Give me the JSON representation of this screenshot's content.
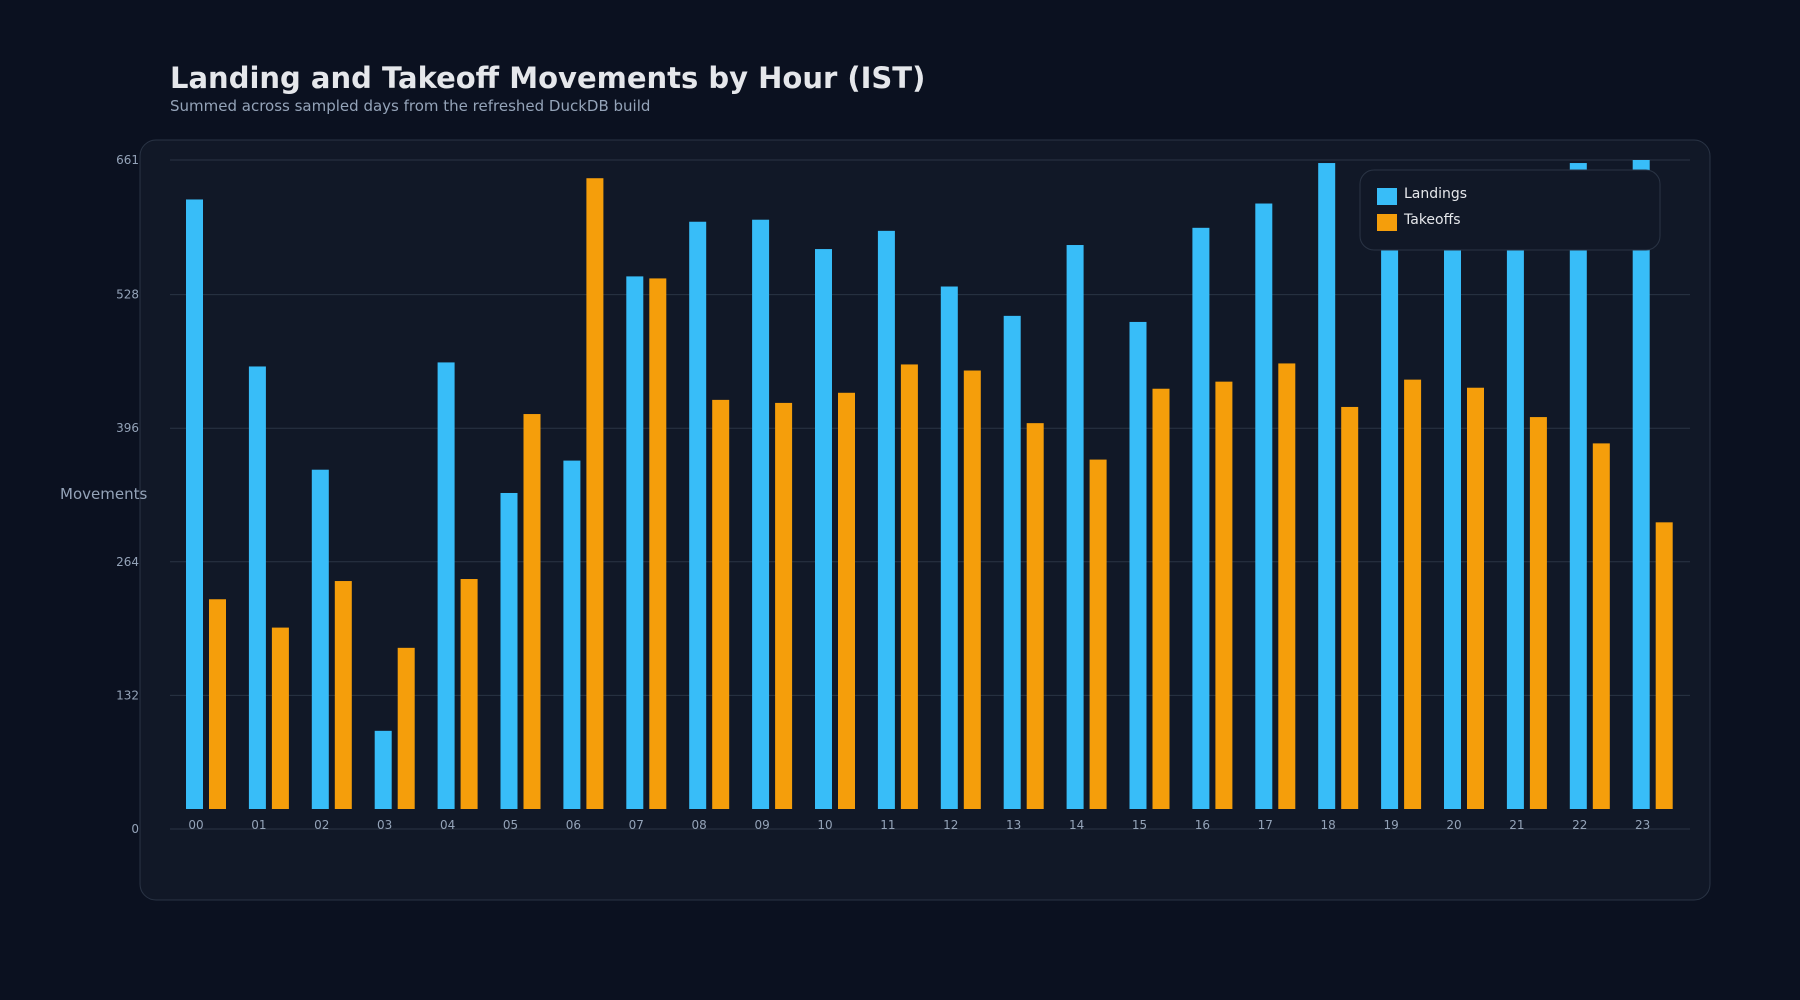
{
  "chart_data": {
    "type": "bar",
    "title": "Landing and Takeoff Movements by Hour (IST)",
    "subtitle": "Summed across sampled days from the refreshed DuckDB build",
    "xlabel": "",
    "ylabel": "Movements",
    "ylim": [
      0,
      661
    ],
    "yticks": [
      "0",
      "132",
      "264",
      "396",
      "528",
      "661"
    ],
    "grid": true,
    "legend_position": "top-right",
    "categories": [
      "00",
      "01",
      "02",
      "03",
      "04",
      "05",
      "06",
      "07",
      "08",
      "09",
      "10",
      "11",
      "12",
      "13",
      "14",
      "15",
      "16",
      "17",
      "18",
      "19",
      "20",
      "21",
      "22",
      "23"
    ],
    "series": [
      {
        "name": "Landings",
        "color": "#38bdf8",
        "values": [
          622,
          457,
          355,
          97,
          461,
          332,
          364,
          546,
          600,
          602,
          573,
          591,
          536,
          507,
          577,
          501,
          594,
          618,
          658,
          615,
          600,
          625,
          658,
          661
        ]
      },
      {
        "name": "Takeoffs",
        "color": "#f59e0b",
        "values": [
          227,
          199,
          245,
          179,
          247,
          410,
          643,
          544,
          424,
          421,
          431,
          459,
          453,
          401,
          365,
          435,
          442,
          460,
          417,
          444,
          436,
          407,
          381,
          303
        ]
      }
    ]
  }
}
